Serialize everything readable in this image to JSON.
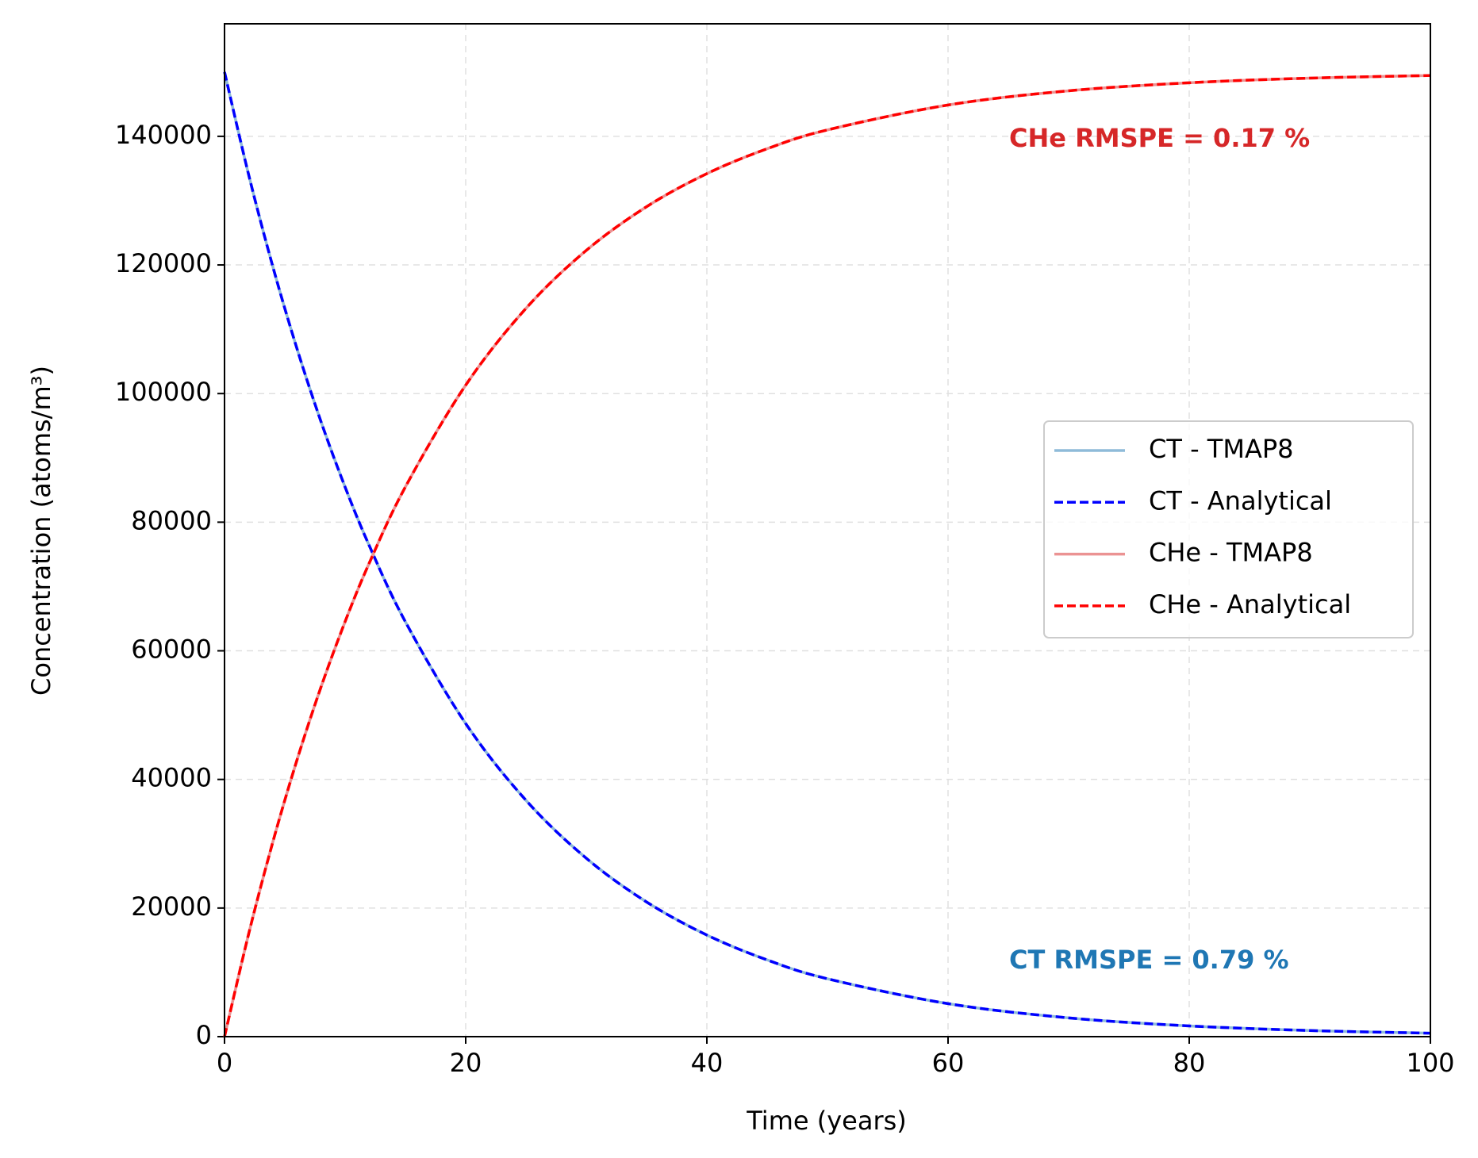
{
  "chart_data": {
    "type": "line",
    "xlabel": "Time (years)",
    "ylabel": "Concentration (atoms/m³)",
    "x": [
      0,
      2,
      4,
      6,
      8,
      10,
      12,
      15,
      20,
      25,
      30,
      35,
      40,
      45,
      50,
      60,
      70,
      80,
      90,
      100
    ],
    "series": [
      {
        "name": "CT - TMAP8",
        "color": "#8fbbd9",
        "linestyle": "solid",
        "values": [
          150000,
          134040,
          119780,
          107040,
          95640,
          85460,
          76370,
          64510,
          48690,
          36750,
          27740,
          20940,
          15800,
          11930,
          9000,
          5130,
          2920,
          1670,
          950,
          540
        ]
      },
      {
        "name": "CT - Analytical",
        "color": "#0000ff",
        "linestyle": "dashed",
        "values": [
          150000,
          134040,
          119780,
          107040,
          95640,
          85460,
          76370,
          64510,
          48690,
          36750,
          27740,
          20940,
          15800,
          11930,
          9000,
          5130,
          2920,
          1670,
          950,
          540
        ]
      },
      {
        "name": "CHe - TMAP8",
        "color": "#eb9393",
        "linestyle": "solid",
        "values": [
          0,
          15960,
          30220,
          42960,
          54360,
          64540,
          73630,
          85490,
          101310,
          113250,
          122260,
          129060,
          134200,
          138070,
          141000,
          144870,
          147080,
          148330,
          149050,
          149460
        ]
      },
      {
        "name": "CHe - Analytical",
        "color": "#ff0000",
        "linestyle": "dashed",
        "values": [
          0,
          15960,
          30220,
          42960,
          54360,
          64540,
          73630,
          85490,
          101310,
          113250,
          122260,
          129060,
          134200,
          138070,
          141000,
          144870,
          147080,
          148330,
          149050,
          149460
        ]
      }
    ],
    "annotations": [
      {
        "text": "CHe RMSPE = 0.17 %",
        "color": "#d62728"
      },
      {
        "text": "CT RMSPE = 0.79 %",
        "color": "#1f77b4"
      }
    ],
    "xlim": [
      0,
      100
    ],
    "xticks": [
      0,
      20,
      40,
      60,
      80,
      100
    ],
    "ylim": [
      0,
      157500
    ],
    "yticks": [
      0,
      20000,
      40000,
      60000,
      80000,
      100000,
      120000,
      140000
    ],
    "grid": true,
    "legend": "center right"
  }
}
